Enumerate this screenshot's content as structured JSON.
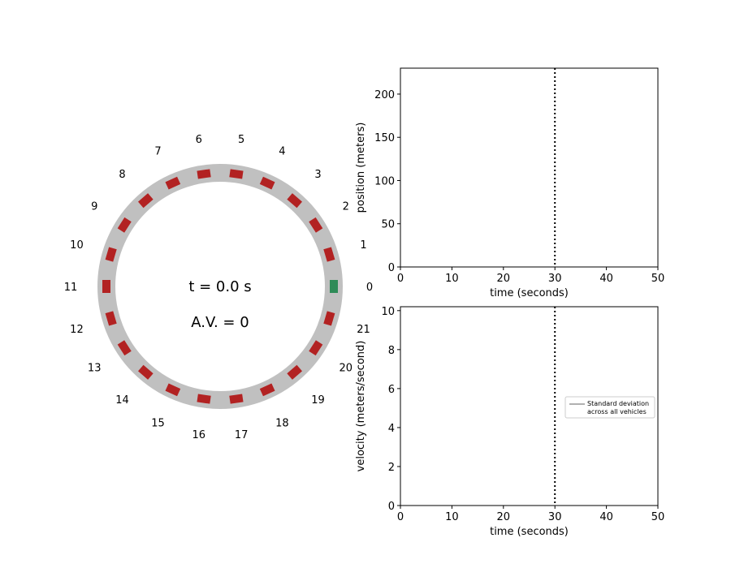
{
  "ring": {
    "time_text": "t = 0.0 s",
    "av_text": "A.V. = 0",
    "road_color": "#c0c0c0",
    "human_vehicle_color": "#b22222",
    "av_vehicle_color": "#2e8b57",
    "vehicles": [
      {
        "id": "0",
        "type": "av"
      },
      {
        "id": "1",
        "type": "human"
      },
      {
        "id": "2",
        "type": "human"
      },
      {
        "id": "3",
        "type": "human"
      },
      {
        "id": "4",
        "type": "human"
      },
      {
        "id": "5",
        "type": "human"
      },
      {
        "id": "6",
        "type": "human"
      },
      {
        "id": "7",
        "type": "human"
      },
      {
        "id": "8",
        "type": "human"
      },
      {
        "id": "9",
        "type": "human"
      },
      {
        "id": "10",
        "type": "human"
      },
      {
        "id": "11",
        "type": "human"
      },
      {
        "id": "12",
        "type": "human"
      },
      {
        "id": "13",
        "type": "human"
      },
      {
        "id": "14",
        "type": "human"
      },
      {
        "id": "15",
        "type": "human"
      },
      {
        "id": "16",
        "type": "human"
      },
      {
        "id": "17",
        "type": "human"
      },
      {
        "id": "18",
        "type": "human"
      },
      {
        "id": "19",
        "type": "human"
      },
      {
        "id": "20",
        "type": "human"
      },
      {
        "id": "21",
        "type": "human"
      }
    ]
  },
  "chart_data": [
    {
      "type": "line",
      "xlabel": "time (seconds)",
      "ylabel": "position (meters)",
      "xlim": [
        0,
        50
      ],
      "ylim": [
        0,
        230
      ],
      "xticks": [
        0,
        10,
        20,
        30,
        40,
        50
      ],
      "yticks": [
        0,
        50,
        100,
        150,
        200
      ],
      "series": [],
      "vline": {
        "x": 30,
        "style": "dotted",
        "color": "#000000"
      },
      "grid": false
    },
    {
      "type": "line",
      "xlabel": "time (seconds)",
      "ylabel": "velocity (meters/second)",
      "xlim": [
        0,
        50
      ],
      "ylim": [
        0,
        10.2
      ],
      "xticks": [
        0,
        10,
        20,
        30,
        40,
        50
      ],
      "yticks": [
        0,
        2,
        4,
        6,
        8,
        10
      ],
      "series": [],
      "vline": {
        "x": 30,
        "style": "dotted",
        "color": "#000000"
      },
      "legend": {
        "placement": "center-right",
        "entries": [
          {
            "label_line1": "Standard deviation",
            "label_line2": "across all vehicles",
            "color": "#808080"
          }
        ]
      },
      "grid": false
    }
  ]
}
